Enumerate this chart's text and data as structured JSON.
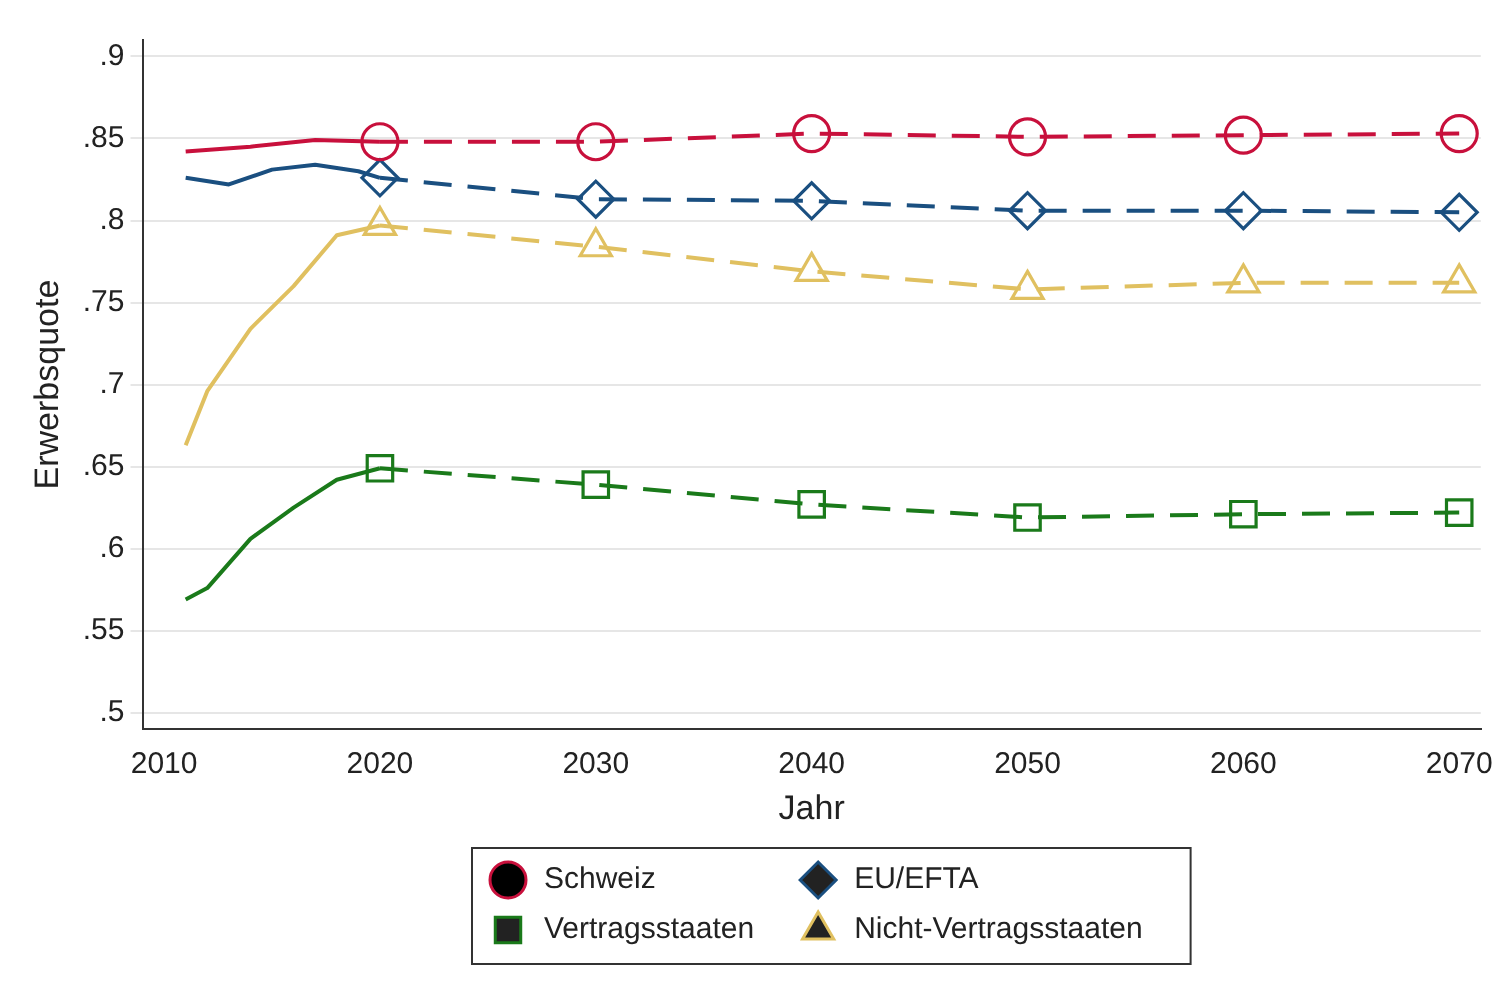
{
  "chart_data": {
    "type": "line",
    "xlabel": "Jahr",
    "ylabel": "Erwerbsquote",
    "xlim": [
      2009,
      2071
    ],
    "xticks": [
      2010,
      2020,
      2030,
      2040,
      2050,
      2060,
      2070
    ],
    "ylim": [
      0.49,
      0.91
    ],
    "yticks": [
      {
        "value": 0.5,
        "label": ".5"
      },
      {
        "value": 0.55,
        "label": ".55"
      },
      {
        "value": 0.6,
        "label": ".6"
      },
      {
        "value": 0.65,
        "label": ".65"
      },
      {
        "value": 0.7,
        "label": ".7"
      },
      {
        "value": 0.75,
        "label": ".75"
      },
      {
        "value": 0.8,
        "label": ".8"
      },
      {
        "value": 0.85,
        "label": ".85"
      },
      {
        "value": 0.9,
        "label": ".9"
      }
    ],
    "grid": "y",
    "legend": "bottom",
    "series": [
      {
        "color": "#c8103c",
        "line_style": "solid",
        "marker": "none",
        "x": [
          2011,
          2014,
          2017,
          2020
        ],
        "values": [
          0.842,
          0.845,
          0.849,
          0.848
        ]
      },
      {
        "color": "#1a4f80",
        "line_style": "solid",
        "marker": "none",
        "x": [
          2011,
          2013,
          2015,
          2017,
          2019,
          2020
        ],
        "values": [
          0.826,
          0.822,
          0.831,
          0.834,
          0.83,
          0.826
        ]
      },
      {
        "color": "#1a7a1a",
        "line_style": "solid",
        "marker": "none",
        "x": [
          2011,
          2012,
          2014,
          2016,
          2018,
          2020
        ],
        "values": [
          0.569,
          0.576,
          0.606,
          0.625,
          0.642,
          0.649
        ]
      },
      {
        "color": "#e0c060",
        "line_style": "solid",
        "marker": "none",
        "x": [
          2011,
          2012,
          2014,
          2016,
          2018,
          2020
        ],
        "values": [
          0.663,
          0.696,
          0.734,
          0.76,
          0.791,
          0.797
        ]
      },
      {
        "name": "Schweiz",
        "color": "#c8103c",
        "line_style": "dashed",
        "marker": "circle",
        "x": [
          2020,
          2030,
          2040,
          2050,
          2060,
          2070
        ],
        "values": [
          0.848,
          0.848,
          0.853,
          0.851,
          0.852,
          0.853
        ]
      },
      {
        "name": "EU/EFTA",
        "color": "#1a4f80",
        "line_style": "dashed",
        "marker": "diamond",
        "x": [
          2020,
          2030,
          2040,
          2050,
          2060,
          2070
        ],
        "values": [
          0.826,
          0.813,
          0.812,
          0.806,
          0.806,
          0.805
        ]
      },
      {
        "name": "Vertragsstaaten",
        "color": "#1a7a1a",
        "line_style": "dashed",
        "marker": "square",
        "x": [
          2020,
          2030,
          2040,
          2050,
          2060,
          2070
        ],
        "values": [
          0.649,
          0.639,
          0.627,
          0.619,
          0.621,
          0.622
        ]
      },
      {
        "name": "Nicht-Vertragsstaaten",
        "color": "#e0c060",
        "line_style": "dashed",
        "marker": "triangle",
        "x": [
          2020,
          2030,
          2040,
          2050,
          2060,
          2070
        ],
        "values": [
          0.797,
          0.784,
          0.769,
          0.758,
          0.762,
          0.762
        ]
      }
    ]
  }
}
